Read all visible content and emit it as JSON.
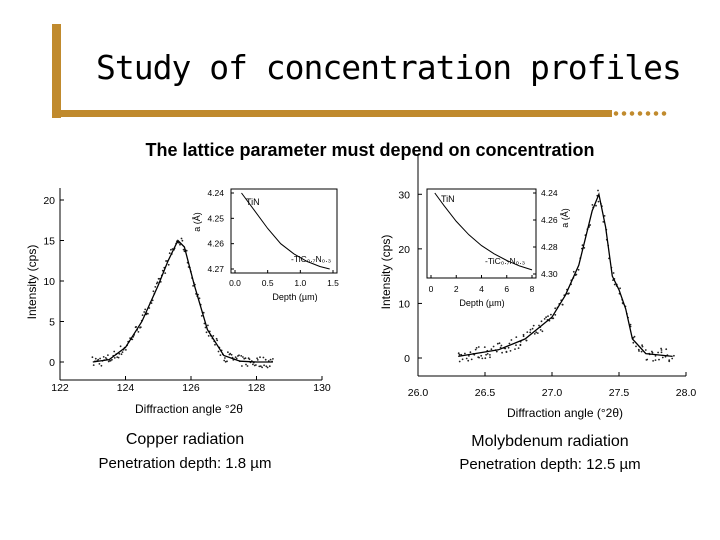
{
  "slide": {
    "title": "Study of concentration profiles",
    "subtitle": "The lattice parameter must depend on concentration"
  },
  "panels": [
    {
      "caption": "Copper radiation",
      "depth_label": "Penetration depth: 1.8 µm"
    },
    {
      "caption": "Molybdenum radiation",
      "depth_label": "Penetration depth: 12.5 µm"
    }
  ],
  "chart_data": [
    {
      "type": "scatter",
      "xlabel": "Diffraction angle °2θ",
      "ylabel": "Intensity (cps)",
      "xlim": [
        122,
        130
      ],
      "ylim": [
        0,
        20
      ],
      "x_ticks": [
        "122",
        "124",
        "126",
        "128",
        "130"
      ],
      "y_ticks": [
        "0",
        "5",
        "10",
        "15",
        "20"
      ],
      "fit": {
        "x": [
          123,
          123.5,
          124,
          124.5,
          125,
          125.3,
          125.6,
          125.8,
          126.1,
          126.5,
          127,
          127.5,
          128,
          128.5
        ],
        "y": [
          0,
          0.3,
          1.8,
          5,
          9.5,
          12.5,
          15,
          14.2,
          9.5,
          4,
          0.8,
          0.1,
          0,
          0
        ]
      },
      "inset": {
        "type": "line",
        "xlabel": "Depth (µm)",
        "ylabel": "a (Å)",
        "xlim": [
          0.0,
          1.5
        ],
        "x_ticks": [
          "0.0",
          "0.5",
          "1.0",
          "1.5"
        ],
        "y_ticks": [
          "4.24",
          "4.25",
          "4.26",
          "4.27"
        ],
        "labels": [
          "TiN",
          "-TiC₀.₇N₀.₃"
        ],
        "curve": {
          "x": [
            0.1,
            0.3,
            0.5,
            0.7,
            0.9,
            1.1,
            1.3,
            1.45
          ],
          "y": [
            4.24,
            4.247,
            4.254,
            4.26,
            4.264,
            4.267,
            4.269,
            4.27
          ]
        }
      }
    },
    {
      "type": "scatter",
      "xlabel": "Diffraction angle (°2θ)",
      "ylabel": "Intensity (cps)",
      "xlim": [
        26.0,
        28.0
      ],
      "ylim": [
        0,
        35
      ],
      "x_ticks": [
        "26.0",
        "26.5",
        "27.0",
        "27.5",
        "28.0"
      ],
      "y_ticks": [
        "0",
        "10",
        "20",
        "30"
      ],
      "fit": {
        "x": [
          26.3,
          26.6,
          26.8,
          27.0,
          27.1,
          27.2,
          27.3,
          27.35,
          27.4,
          27.45,
          27.5,
          27.55,
          27.6,
          27.7,
          27.9
        ],
        "y": [
          0.3,
          1.5,
          3.5,
          7.5,
          11.5,
          17,
          27,
          30,
          24,
          15,
          12.5,
          9,
          3.5,
          0.8,
          0.3
        ]
      },
      "inset": {
        "type": "line",
        "xlabel": "Depth (µm)",
        "ylabel": "a (Å)",
        "xlim": [
          0,
          8
        ],
        "x_ticks": [
          "0",
          "2",
          "4",
          "6",
          "8"
        ],
        "y_ticks": [
          "4.24",
          "4.26",
          "4.28",
          "4.30"
        ],
        "labels": [
          "TiN",
          "-TiC₀.₇N₀.₃"
        ],
        "curve": {
          "x": [
            0.3,
            1,
            2,
            3,
            4,
            5,
            6,
            7,
            8
          ],
          "y": [
            4.24,
            4.249,
            4.261,
            4.271,
            4.279,
            4.285,
            4.29,
            4.294,
            4.297
          ]
        }
      }
    }
  ]
}
